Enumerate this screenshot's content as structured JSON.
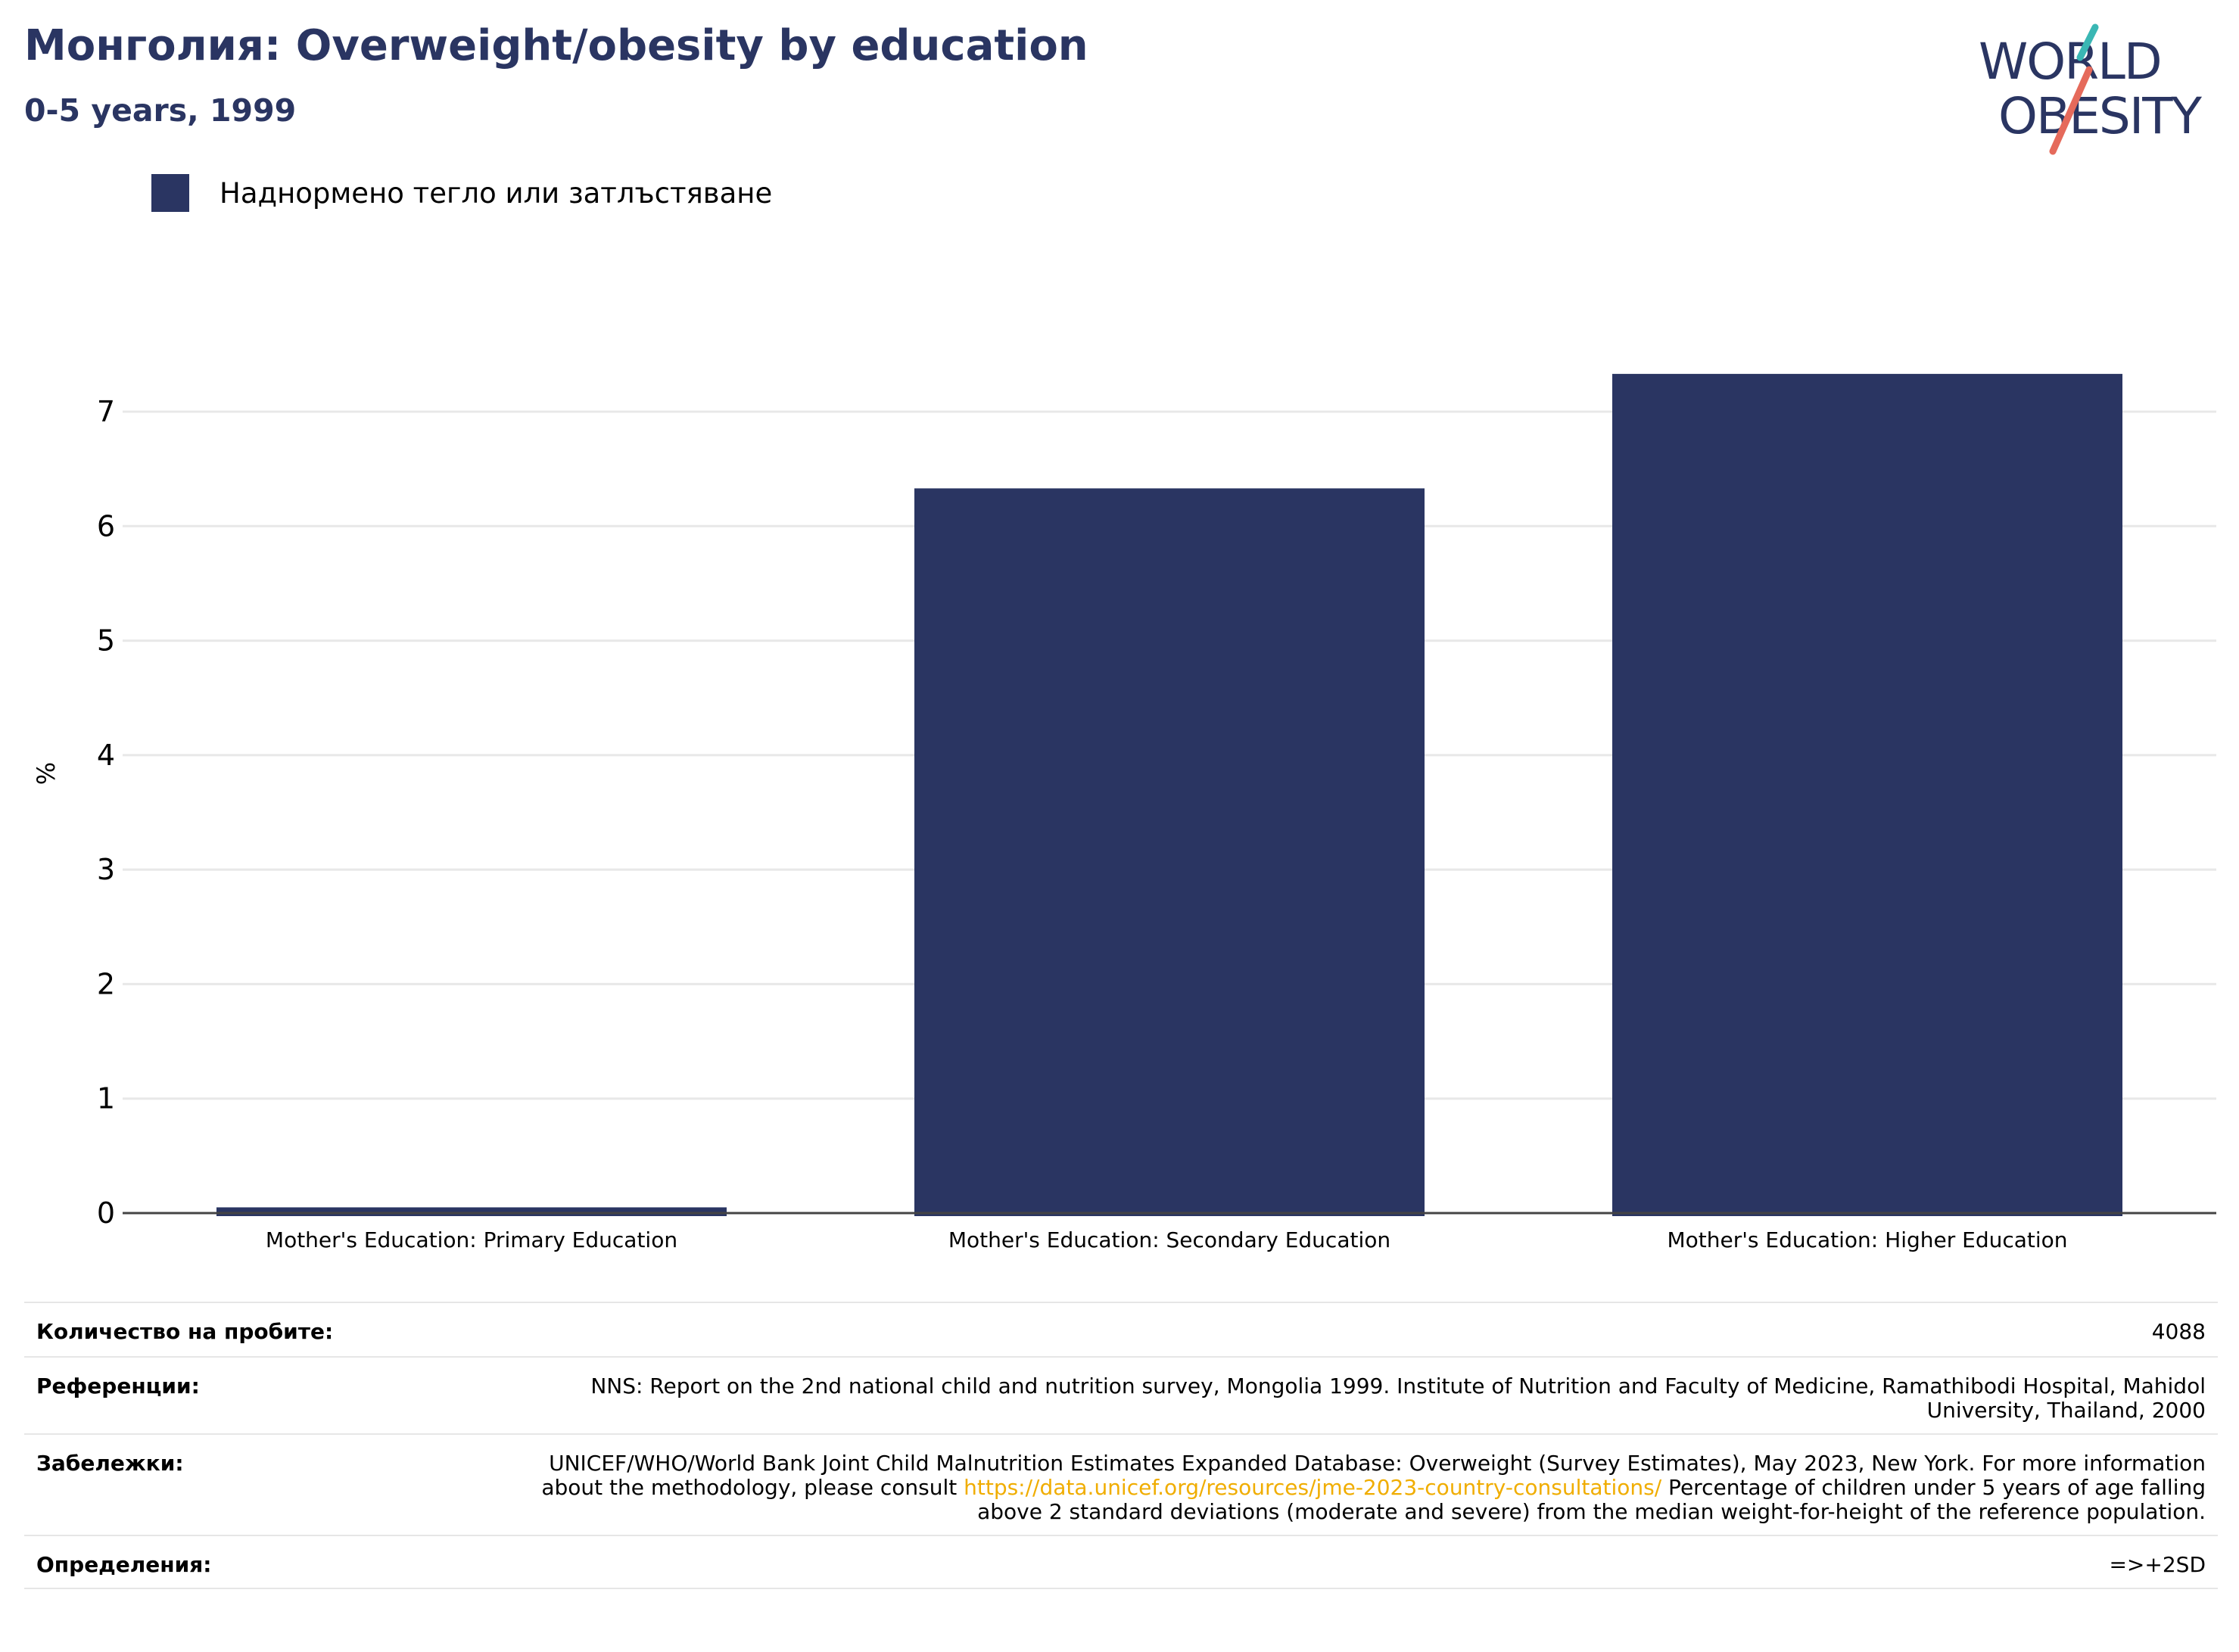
{
  "header": {
    "title": "Монголия: Overweight/obesity by education",
    "subtitle": "0-5 years, 1999"
  },
  "logo": {
    "line1": "WORLD",
    "line2": "OBESITY"
  },
  "colors": {
    "bar": "#2a3562",
    "title": "#2a3562",
    "link": "#f0ad00",
    "logo_teal": "#3ab7b4",
    "logo_coral": "#e56a5b"
  },
  "chart_data": {
    "type": "bar",
    "categories": [
      "Mother's Education: Primary Education",
      "Mother's Education: Secondary Education",
      "Mother's Education: Higher Education"
    ],
    "series": [
      {
        "name": "Наднормено тегло или затлъстяване",
        "values": [
          0.05,
          6.33,
          7.33
        ]
      }
    ],
    "ylabel": "%",
    "ylim": [
      0,
      7.7
    ],
    "yticks": [
      0,
      1,
      2,
      3,
      4,
      5,
      6,
      7
    ],
    "grid": true,
    "legend_position": "top-left"
  },
  "info": {
    "samples_label": "Количество на пробите:",
    "samples_value": "4088",
    "references_label": "Референции:",
    "references_value": "NNS: Report on the 2nd national child and nutrition survey, Mongolia 1999. Institute of Nutrition and Faculty of Medicine, Ramathibodi Hospital, Mahidol University, Thailand, 2000",
    "notes_label": "Забележки:",
    "notes_text_before": "UNICEF/WHO/World Bank Joint Child Malnutrition Estimates Expanded Database: Overweight (Survey Estimates), May 2023, New York. For more information about the methodology, please consult ",
    "notes_link": "https://data.unicef.org/resources/jme-2023-country-consultations/",
    "notes_text_after": " Percentage of children under 5 years of age falling above 2 standard deviations (moderate and severe) from the median weight-for-height of the reference population.",
    "definitions_label": "Определения:",
    "definitions_value": "=>+2SD"
  }
}
